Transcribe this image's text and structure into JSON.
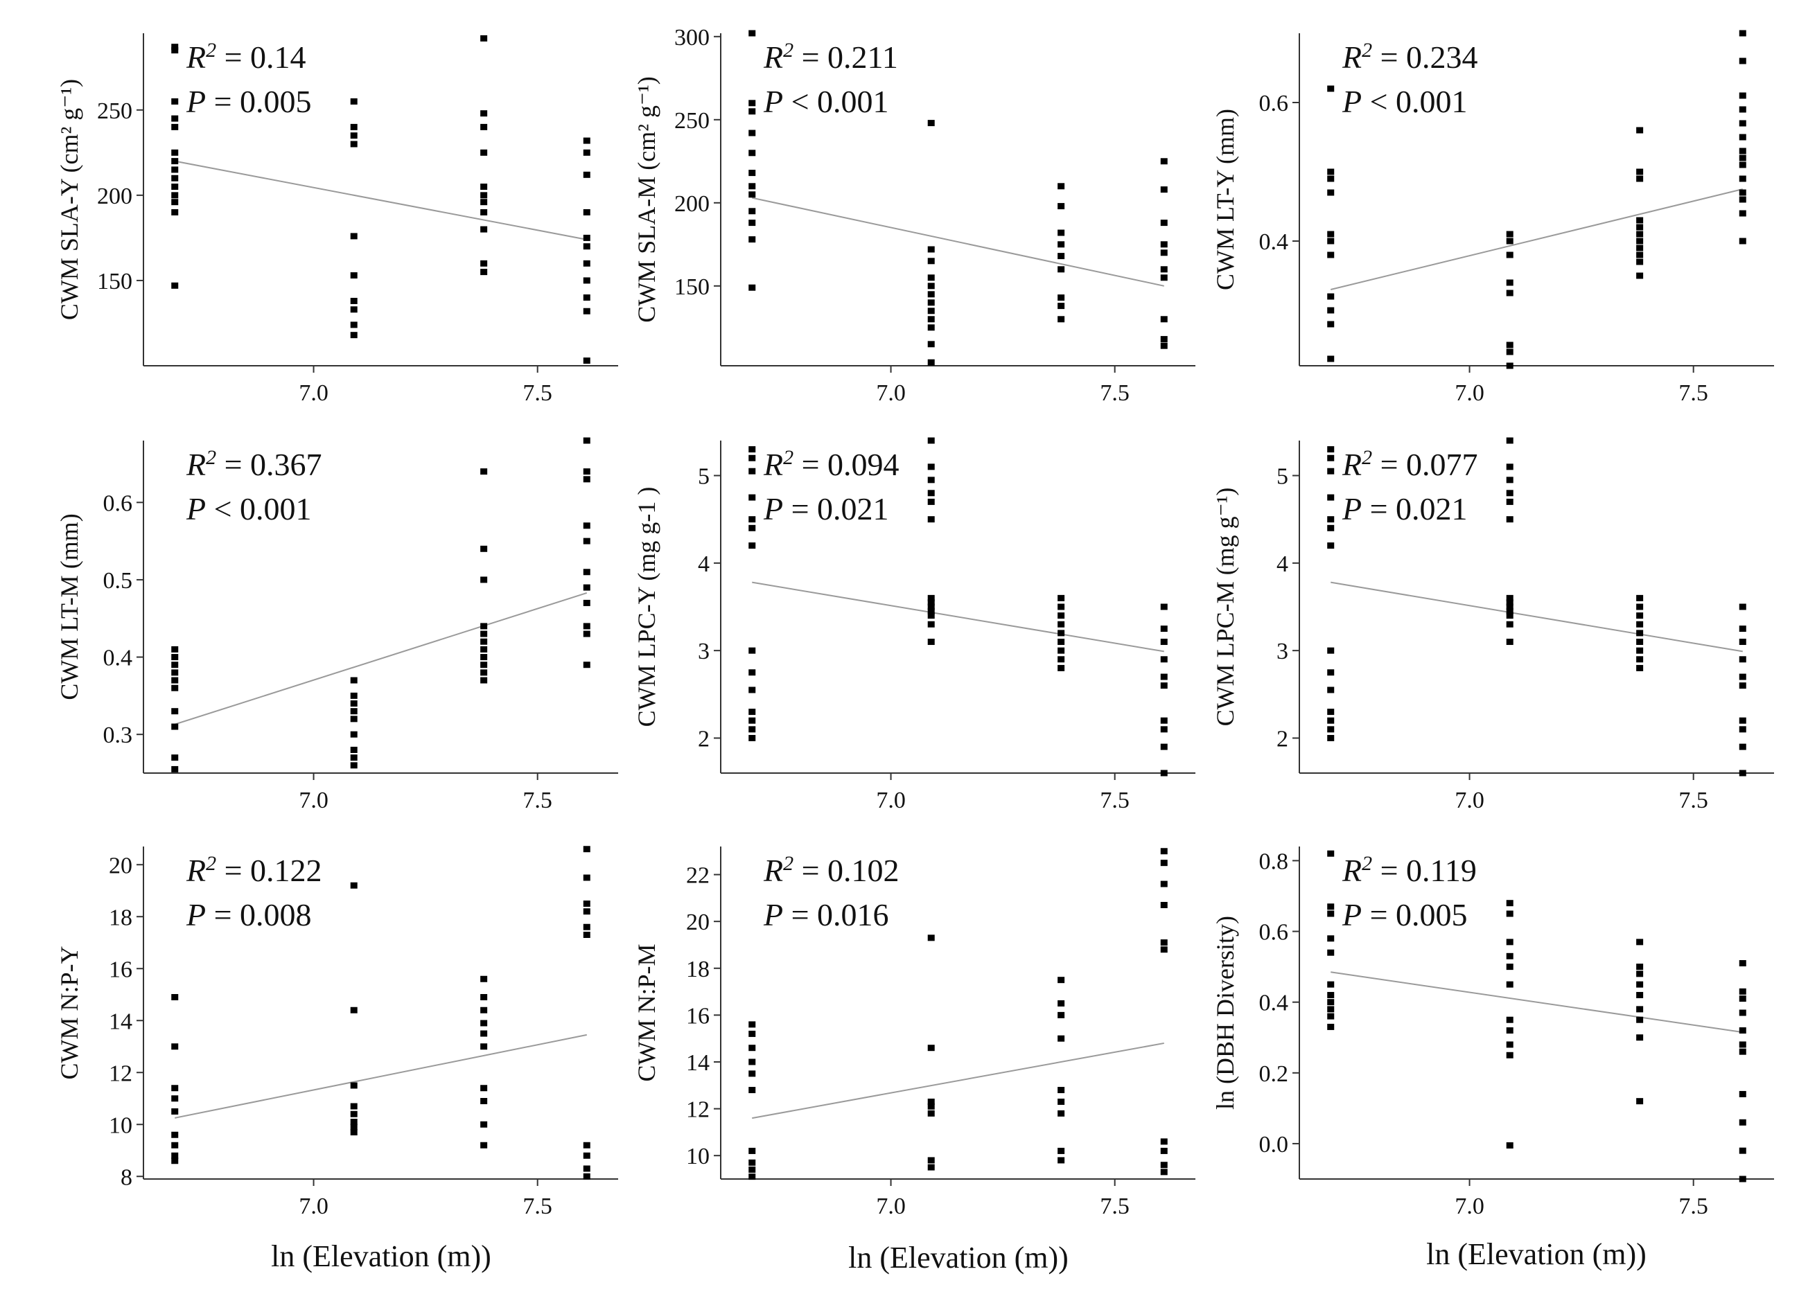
{
  "figure": {
    "xlabel": "ln (Elevation (m))",
    "colors": {
      "point": "#000000",
      "fit_line": "#9a9a9a",
      "axis": "#333333"
    }
  },
  "chart_data": [
    {
      "type": "scatter",
      "title": "",
      "xlabel": "",
      "ylabel": "CWM SLA-Y (cm² g⁻¹)",
      "xlim": [
        6.62,
        7.68
      ],
      "ylim": [
        100,
        295
      ],
      "xticks": [
        7.0,
        7.5
      ],
      "xtick_labels": [
        "7.0",
        "7.5"
      ],
      "yticks": [
        150,
        200,
        250
      ],
      "ytick_labels": [
        "150",
        "200",
        "250"
      ],
      "stats": {
        "r2": "0.14",
        "p_op": "=",
        "p": "0.005"
      },
      "fit": {
        "x": [
          6.69,
          7.61
        ],
        "y": [
          220,
          174
        ]
      },
      "points": {
        "x": [
          6.69,
          7.09,
          7.38,
          7.61
        ],
        "y": [
          [
            147,
            190,
            196,
            200,
            205,
            210,
            215,
            220,
            225,
            240,
            245,
            255,
            285,
            287
          ],
          [
            118,
            124,
            133,
            138,
            153,
            176,
            230,
            235,
            240,
            255
          ],
          [
            155,
            160,
            180,
            190,
            196,
            200,
            205,
            225,
            240,
            248,
            292
          ],
          [
            103,
            132,
            140,
            150,
            160,
            170,
            175,
            190,
            212,
            225,
            232
          ]
        ]
      }
    },
    {
      "type": "scatter",
      "title": "",
      "xlabel": "",
      "ylabel": "CWM SLA-M (cm² g⁻¹)",
      "xlim": [
        6.62,
        7.68
      ],
      "ylim": [
        102,
        302
      ],
      "xticks": [
        7.0,
        7.5
      ],
      "xtick_labels": [
        "7.0",
        "7.5"
      ],
      "yticks": [
        150,
        200,
        250,
        300
      ],
      "ytick_labels": [
        "150",
        "200",
        "250",
        "300"
      ],
      "stats": {
        "r2": "0.211",
        "p_op": "<",
        "p": "0.001"
      },
      "fit": {
        "x": [
          6.69,
          7.61
        ],
        "y": [
          203,
          150
        ]
      },
      "points": {
        "x": [
          6.69,
          7.09,
          7.38,
          7.61
        ],
        "y": [
          [
            149,
            178,
            188,
            195,
            205,
            210,
            218,
            230,
            242,
            255,
            260,
            302
          ],
          [
            104,
            115,
            125,
            130,
            135,
            140,
            145,
            150,
            155,
            165,
            172,
            248
          ],
          [
            130,
            138,
            143,
            160,
            168,
            175,
            182,
            198,
            210
          ],
          [
            114,
            118,
            130,
            155,
            160,
            170,
            175,
            188,
            208,
            225
          ]
        ]
      }
    },
    {
      "type": "scatter",
      "title": "",
      "xlabel": "",
      "ylabel": "CWM LT-Y (mm)",
      "xlim": [
        6.62,
        7.68
      ],
      "ylim": [
        0.22,
        0.7
      ],
      "xticks": [
        7.0,
        7.5
      ],
      "xtick_labels": [
        "7.0",
        "7.5"
      ],
      "yticks": [
        0.4,
        0.6
      ],
      "ytick_labels": [
        "0.4",
        "0.6"
      ],
      "stats": {
        "r2": "0.234",
        "p_op": "<",
        "p": "0.001"
      },
      "fit": {
        "x": [
          6.69,
          7.61
        ],
        "y": [
          0.33,
          0.475
        ]
      },
      "points": {
        "x": [
          6.69,
          7.09,
          7.38,
          7.61
        ],
        "y": [
          [
            0.23,
            0.28,
            0.3,
            0.32,
            0.38,
            0.4,
            0.41,
            0.47,
            0.49,
            0.5,
            0.62
          ],
          [
            0.22,
            0.24,
            0.25,
            0.325,
            0.34,
            0.38,
            0.4,
            0.41
          ],
          [
            0.35,
            0.37,
            0.38,
            0.39,
            0.4,
            0.41,
            0.42,
            0.43,
            0.49,
            0.5,
            0.56
          ],
          [
            0.4,
            0.44,
            0.46,
            0.47,
            0.49,
            0.51,
            0.52,
            0.53,
            0.55,
            0.57,
            0.59,
            0.61,
            0.66,
            0.7
          ]
        ]
      }
    },
    {
      "type": "scatter",
      "title": "",
      "xlabel": "",
      "ylabel": "CWM LT-M (mm)",
      "xlim": [
        6.62,
        7.68
      ],
      "ylim": [
        0.25,
        0.68
      ],
      "xticks": [
        7.0,
        7.5
      ],
      "xtick_labels": [
        "7.0",
        "7.5"
      ],
      "yticks": [
        0.3,
        0.4,
        0.5,
        0.6
      ],
      "ytick_labels": [
        "0.3",
        "0.4",
        "0.5",
        "0.6"
      ],
      "stats": {
        "r2": "0.367",
        "p_op": "<",
        "p": "0.001"
      },
      "fit": {
        "x": [
          6.69,
          7.61
        ],
        "y": [
          0.313,
          0.483
        ]
      },
      "points": {
        "x": [
          6.69,
          7.09,
          7.38,
          7.61
        ],
        "y": [
          [
            0.255,
            0.27,
            0.31,
            0.33,
            0.36,
            0.37,
            0.38,
            0.39,
            0.4,
            0.41
          ],
          [
            0.26,
            0.27,
            0.28,
            0.3,
            0.32,
            0.33,
            0.34,
            0.35,
            0.37
          ],
          [
            0.37,
            0.38,
            0.39,
            0.4,
            0.41,
            0.42,
            0.43,
            0.44,
            0.5,
            0.54,
            0.64
          ],
          [
            0.39,
            0.43,
            0.44,
            0.47,
            0.49,
            0.51,
            0.55,
            0.57,
            0.63,
            0.64,
            0.68
          ]
        ]
      }
    },
    {
      "type": "scatter",
      "title": "",
      "xlabel": "",
      "ylabel": "CWM LPC-Y (mg g-1 )",
      "xlim": [
        6.62,
        7.68
      ],
      "ylim": [
        1.6,
        5.4
      ],
      "xticks": [
        7.0,
        7.5
      ],
      "xtick_labels": [
        "7.0",
        "7.5"
      ],
      "yticks": [
        2,
        3,
        4,
        5
      ],
      "ytick_labels": [
        "2",
        "3",
        "4",
        "5"
      ],
      "stats": {
        "r2": "0.094",
        "p_op": "=",
        "p": "0.021"
      },
      "fit": {
        "x": [
          6.69,
          7.61
        ],
        "y": [
          3.78,
          2.99
        ]
      },
      "points": {
        "x": [
          6.69,
          7.09,
          7.38,
          7.61
        ],
        "y": [
          [
            2.0,
            2.1,
            2.2,
            2.3,
            2.55,
            2.75,
            3.0,
            4.2,
            4.4,
            4.5,
            4.75,
            5.05,
            5.2,
            5.3
          ],
          [
            3.1,
            3.3,
            3.4,
            3.45,
            3.5,
            3.55,
            3.6,
            4.5,
            4.7,
            4.8,
            4.95,
            5.1,
            5.4
          ],
          [
            2.8,
            2.9,
            3.0,
            3.1,
            3.2,
            3.3,
            3.4,
            3.5,
            3.6
          ],
          [
            1.6,
            1.9,
            2.1,
            2.2,
            2.6,
            2.7,
            2.9,
            3.1,
            3.25,
            3.5
          ]
        ]
      }
    },
    {
      "type": "scatter",
      "title": "",
      "xlabel": "",
      "ylabel": "CWM LPC-M (mg g⁻¹)",
      "xlim": [
        6.62,
        7.68
      ],
      "ylim": [
        1.6,
        5.4
      ],
      "xticks": [
        7.0,
        7.5
      ],
      "xtick_labels": [
        "7.0",
        "7.5"
      ],
      "yticks": [
        2,
        3,
        4,
        5
      ],
      "ytick_labels": [
        "2",
        "3",
        "4",
        "5"
      ],
      "stats": {
        "r2": "0.077",
        "p_op": "=",
        "p": "0.021"
      },
      "fit": {
        "x": [
          6.69,
          7.61
        ],
        "y": [
          3.78,
          2.99
        ]
      },
      "points": {
        "x": [
          6.69,
          7.09,
          7.38,
          7.61
        ],
        "y": [
          [
            2.0,
            2.1,
            2.2,
            2.3,
            2.55,
            2.75,
            3.0,
            4.2,
            4.4,
            4.5,
            4.75,
            5.05,
            5.2,
            5.3
          ],
          [
            3.1,
            3.3,
            3.4,
            3.45,
            3.5,
            3.55,
            3.6,
            4.5,
            4.7,
            4.8,
            4.95,
            5.1,
            5.4
          ],
          [
            2.8,
            2.9,
            3.0,
            3.1,
            3.2,
            3.3,
            3.4,
            3.5,
            3.6
          ],
          [
            1.6,
            1.9,
            2.1,
            2.2,
            2.6,
            2.7,
            2.9,
            3.1,
            3.25,
            3.5
          ]
        ]
      }
    },
    {
      "type": "scatter",
      "title": "",
      "xlabel": "ln (Elevation (m))",
      "ylabel": "CWM N:P-Y",
      "xlim": [
        6.62,
        7.68
      ],
      "ylim": [
        7.9,
        20.7
      ],
      "xticks": [
        7.0,
        7.5
      ],
      "xtick_labels": [
        "7.0",
        "7.5"
      ],
      "yticks": [
        8,
        10,
        12,
        14,
        16,
        18,
        20
      ],
      "ytick_labels": [
        "8",
        "10",
        "12",
        "14",
        "16",
        "18",
        "20"
      ],
      "stats": {
        "r2": "0.122",
        "p_op": "=",
        "p": "0.008"
      },
      "fit": {
        "x": [
          6.69,
          7.61
        ],
        "y": [
          10.25,
          13.45
        ]
      },
      "points": {
        "x": [
          6.69,
          7.09,
          7.38,
          7.61
        ],
        "y": [
          [
            8.6,
            8.8,
            9.2,
            9.6,
            10.5,
            11.0,
            11.4,
            13.0,
            14.9
          ],
          [
            9.7,
            9.9,
            10.1,
            10.4,
            10.7,
            11.5,
            14.4,
            19.2
          ],
          [
            9.2,
            10.0,
            10.9,
            11.4,
            13.0,
            13.5,
            13.9,
            14.4,
            14.9,
            15.6
          ],
          [
            8.0,
            8.3,
            8.8,
            9.2,
            17.3,
            17.6,
            18.2,
            18.5,
            19.5,
            20.6
          ]
        ]
      }
    },
    {
      "type": "scatter",
      "title": "",
      "xlabel": "ln (Elevation (m))",
      "ylabel": "CWM N:P-M",
      "xlim": [
        6.62,
        7.68
      ],
      "ylim": [
        9.0,
        23.2
      ],
      "xticks": [
        7.0,
        7.5
      ],
      "xtick_labels": [
        "7.0",
        "7.5"
      ],
      "yticks": [
        10,
        12,
        14,
        16,
        18,
        20,
        22
      ],
      "ytick_labels": [
        "10",
        "12",
        "14",
        "16",
        "18",
        "20",
        "22"
      ],
      "stats": {
        "r2": "0.102",
        "p_op": "=",
        "p": "0.016"
      },
      "fit": {
        "x": [
          6.69,
          7.61
        ],
        "y": [
          11.6,
          14.8
        ]
      },
      "points": {
        "x": [
          6.69,
          7.09,
          7.38,
          7.61
        ],
        "y": [
          [
            9.1,
            9.4,
            9.7,
            10.2,
            12.8,
            13.5,
            14.0,
            14.6,
            15.2,
            15.6
          ],
          [
            9.5,
            9.8,
            11.8,
            12.1,
            12.3,
            14.6,
            19.3
          ],
          [
            9.8,
            10.2,
            11.8,
            12.3,
            12.8,
            15.0,
            16.0,
            16.5,
            17.5
          ],
          [
            9.3,
            9.6,
            10.2,
            10.6,
            18.8,
            19.1,
            20.7,
            21.6,
            22.5,
            23.0
          ]
        ]
      }
    },
    {
      "type": "scatter",
      "title": "",
      "xlabel": "ln (Elevation (m))",
      "ylabel": "ln (DBH Diversity)",
      "xlim": [
        6.62,
        7.68
      ],
      "ylim": [
        -0.1,
        0.84
      ],
      "xticks": [
        7.0,
        7.5
      ],
      "xtick_labels": [
        "7.0",
        "7.5"
      ],
      "yticks": [
        0.0,
        0.2,
        0.4,
        0.6,
        0.8
      ],
      "ytick_labels": [
        "0.0",
        "0.2",
        "0.4",
        "0.6",
        "0.8"
      ],
      "stats": {
        "r2": "0.119",
        "p_op": "=",
        "p": "0.005"
      },
      "fit": {
        "x": [
          6.69,
          7.61
        ],
        "y": [
          0.485,
          0.315
        ]
      },
      "points": {
        "x": [
          6.69,
          7.09,
          7.38,
          7.61
        ],
        "y": [
          [
            0.33,
            0.36,
            0.38,
            0.4,
            0.42,
            0.45,
            0.54,
            0.58,
            0.65,
            0.67,
            0.82
          ],
          [
            -0.005,
            0.25,
            0.28,
            0.32,
            0.35,
            0.45,
            0.5,
            0.53,
            0.57,
            0.65,
            0.68
          ],
          [
            0.12,
            0.3,
            0.35,
            0.38,
            0.42,
            0.45,
            0.48,
            0.5,
            0.57
          ],
          [
            -0.1,
            -0.02,
            0.06,
            0.14,
            0.26,
            0.28,
            0.32,
            0.37,
            0.41,
            0.43,
            0.51
          ]
        ]
      }
    }
  ]
}
